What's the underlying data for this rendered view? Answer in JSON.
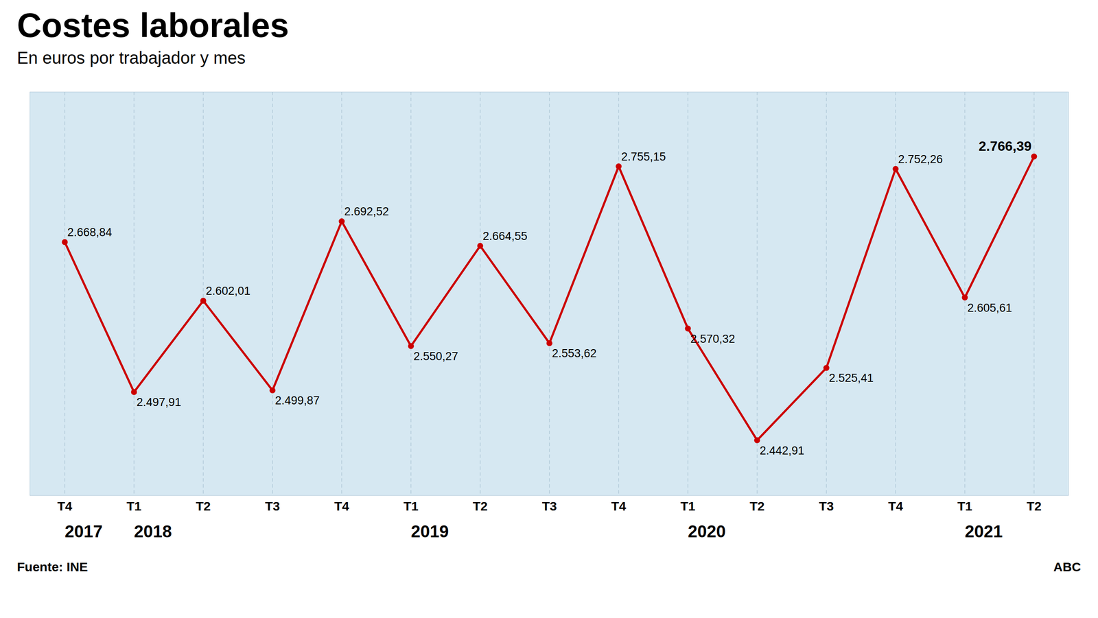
{
  "chart_data": {
    "type": "line",
    "title": "Costes laborales",
    "subtitle": "En euros por trabajador y mes",
    "source": "Fuente: INE",
    "brand": "ABC",
    "categories": [
      "T4",
      "T1",
      "T2",
      "T3",
      "T4",
      "T1",
      "T2",
      "T3",
      "T4",
      "T1",
      "T2",
      "T3",
      "T4",
      "T1",
      "T2"
    ],
    "values": [
      2668.84,
      2497.91,
      2602.01,
      2499.87,
      2692.52,
      2550.27,
      2664.55,
      2553.62,
      2755.15,
      2570.32,
      2442.91,
      2525.41,
      2752.26,
      2605.61,
      2766.39
    ],
    "value_labels": [
      "2.668,84",
      "2.497,91",
      "2.602,01",
      "2.499,87",
      "2.692,52",
      "2.550,27",
      "2.664,55",
      "2.553,62",
      "2.755,15",
      "2.570,32",
      "2.442,91",
      "2.525,41",
      "2.752,26",
      "2.605,61",
      "2.766,39"
    ],
    "data_labels": true,
    "annotations": [
      "2017",
      "2018",
      "2019",
      "2020",
      "2021"
    ],
    "color": "#cc0000",
    "marker": "circle",
    "ylim": [
      2380,
      2840
    ],
    "grid": true,
    "tick_labels": "x"
  }
}
